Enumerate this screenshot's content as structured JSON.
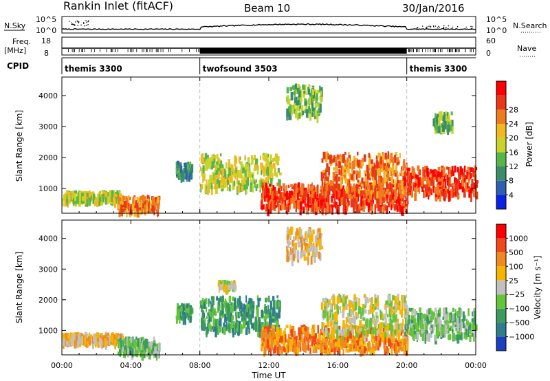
{
  "header": {
    "station": "Rankin Inlet (fitACF)",
    "beam": "Beam 10",
    "date": "30/Jan/2016"
  },
  "summary_panels": {
    "nsky": {
      "label": "N.Sky",
      "left_top": "10^5",
      "left_bottom": "10^0"
    },
    "nsearch": {
      "label": "N.Search",
      "right_top": "10^5",
      "right_bottom": "10^0"
    },
    "freq": {
      "label_line1": "Freq.",
      "label_line2": "[MHz]",
      "left_top": "18",
      "left_bottom": "8"
    },
    "nave": {
      "label": "Nave",
      "right_top": "60",
      "right_bottom": "0"
    },
    "cpid": {
      "label": "CPID",
      "segments": [
        {
          "name": "themis 3300",
          "start_hour": 0
        },
        {
          "name": "twofsound 3503",
          "start_hour": 8
        },
        {
          "name": "themis 3300",
          "start_hour": 20
        }
      ]
    }
  },
  "x_axis": {
    "label": "Time UT",
    "range_hours": [
      0,
      24
    ],
    "tick_labels": [
      "00:00",
      "04:00",
      "08:00",
      "12:00",
      "16:00",
      "20:00",
      "00:00"
    ],
    "tick_hours": [
      0,
      4,
      8,
      12,
      16,
      20,
      24
    ]
  },
  "chart_data": [
    {
      "type": "heatmap",
      "panel": "power",
      "ylabel": "Slant Range [km]",
      "ylim": [
        200,
        4600
      ],
      "y_ticks": [
        1000,
        2000,
        3000,
        4000
      ],
      "colorbar": {
        "label": "Power [dB]",
        "tick_labels": [
          "4",
          "8",
          "12",
          "16",
          "20",
          "24",
          "28"
        ],
        "colors": [
          "#0a22e6",
          "#2f5fb0",
          "#3b8c6a",
          "#56b64a",
          "#c8d42a",
          "#f2b820",
          "#f07a1e",
          "#e83818",
          "#ff0000"
        ]
      },
      "regions": [
        {
          "t0": 0.0,
          "t1": 3.5,
          "r0": 650,
          "r1": 950,
          "level": 4
        },
        {
          "t0": 3.2,
          "t1": 5.6,
          "r0": 300,
          "r1": 800,
          "level": 6
        },
        {
          "t0": 6.6,
          "t1": 7.5,
          "r0": 1450,
          "r1": 1900,
          "level": 2
        },
        {
          "t0": 8.0,
          "t1": 12.6,
          "r0": 1050,
          "r1": 2150,
          "level": 4
        },
        {
          "t0": 11.5,
          "t1": 20.0,
          "r0": 400,
          "r1": 1200,
          "level": 7
        },
        {
          "t0": 15.0,
          "t1": 20.0,
          "r0": 900,
          "r1": 2200,
          "level": 6
        },
        {
          "t0": 19.8,
          "t1": 24.0,
          "r0": 850,
          "r1": 1750,
          "level": 7
        },
        {
          "t0": 13.0,
          "t1": 15.0,
          "r0": 3400,
          "r1": 4400,
          "level": 3
        },
        {
          "t0": 21.5,
          "t1": 22.6,
          "r0": 3000,
          "r1": 3500,
          "level": 3
        }
      ]
    },
    {
      "type": "heatmap",
      "panel": "velocity",
      "ylabel": "Slant Range [km]",
      "ylim": [
        200,
        4600
      ],
      "y_ticks": [
        1000,
        2000,
        3000,
        4000
      ],
      "colorbar": {
        "label": "Velocity [m s⁻¹]",
        "tick_labels": [
          "1000",
          "500",
          "100",
          "25",
          "−25",
          "−100",
          "−500",
          "−1000"
        ],
        "colors": [
          "#1c3fbf",
          "#2f7d8c",
          "#3d9a5e",
          "#64c43a",
          "#c0c0c0",
          "#f6b400",
          "#f08a1e",
          "#f04818",
          "#ff0000"
        ]
      },
      "regions": [
        {
          "t0": 0.0,
          "t1": 3.5,
          "r0": 650,
          "r1": 950,
          "level": 5
        },
        {
          "t0": 3.2,
          "t1": 5.6,
          "r0": 300,
          "r1": 800,
          "level": 3
        },
        {
          "t0": 6.6,
          "t1": 7.5,
          "r0": 1450,
          "r1": 1900,
          "level": 2
        },
        {
          "t0": 8.0,
          "t1": 12.6,
          "r0": 1050,
          "r1": 2150,
          "level": 2
        },
        {
          "t0": 11.5,
          "t1": 20.0,
          "r0": 400,
          "r1": 1200,
          "level": 6
        },
        {
          "t0": 15.0,
          "t1": 20.0,
          "r0": 900,
          "r1": 2200,
          "level": 4
        },
        {
          "t0": 19.8,
          "t1": 24.0,
          "r0": 850,
          "r1": 1750,
          "level": 3
        },
        {
          "t0": 13.0,
          "t1": 15.0,
          "r0": 3400,
          "r1": 4400,
          "level": 5
        },
        {
          "t0": 9.0,
          "t1": 10.0,
          "r0": 2450,
          "r1": 2650,
          "level": 4
        }
      ]
    }
  ]
}
